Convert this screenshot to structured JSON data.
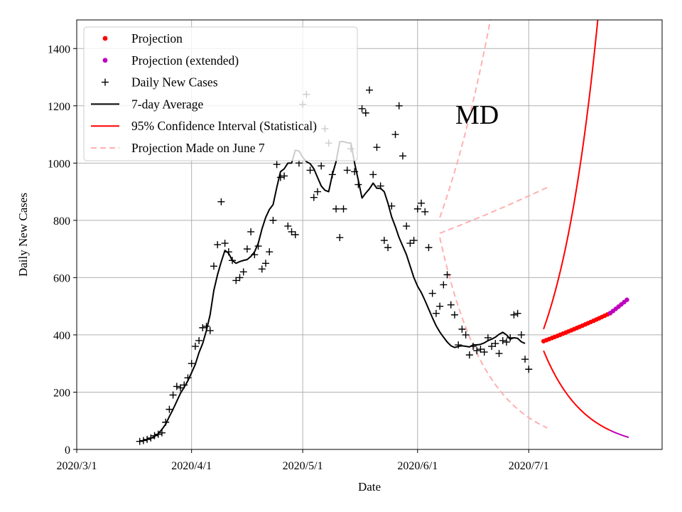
{
  "chart_data": {
    "type": "line",
    "state_label": "MD",
    "xlabel": "Date",
    "ylabel": "Daily New Cases",
    "x_ticks": [
      {
        "day": 0,
        "label": "2020/3/1"
      },
      {
        "day": 31,
        "label": "2020/4/1"
      },
      {
        "day": 61,
        "label": "2020/5/1"
      },
      {
        "day": 92,
        "label": "2020/6/1"
      },
      {
        "day": 122,
        "label": "2020/7/1"
      }
    ],
    "y_ticks": [
      0,
      200,
      400,
      600,
      800,
      1000,
      1200,
      1400
    ],
    "xlim": [
      0,
      158
    ],
    "ylim": [
      0,
      1500
    ],
    "grid": true,
    "legend_position": "top-left",
    "legend": [
      {
        "label": "Projection",
        "kind": "dot",
        "color": "#ff0000"
      },
      {
        "label": "Projection (extended)",
        "kind": "dot",
        "color": "#bf00bf"
      },
      {
        "label": "Daily New Cases",
        "kind": "plus",
        "color": "#000000"
      },
      {
        "label": "7-day Average",
        "kind": "line",
        "color": "#000000"
      },
      {
        "label": "95% Confidence Interval (Statistical)",
        "kind": "line",
        "color": "#ff0000"
      },
      {
        "label": "Projection Made on June 7",
        "kind": "dash",
        "color": "#ffb0b0"
      }
    ],
    "daily_new_cases": {
      "start_day": 17,
      "values": [
        28,
        31,
        35,
        40,
        48,
        53,
        58,
        95,
        140,
        190,
        220,
        215,
        225,
        250,
        300,
        360,
        380,
        425,
        430,
        415,
        640,
        715,
        865,
        720,
        690,
        660,
        590,
        600,
        620,
        700,
        760,
        680,
        710,
        630,
        650,
        690,
        800,
        995,
        950,
        955,
        780,
        760,
        750,
        1000,
        1205,
        1240,
        975,
        880,
        900,
        990,
        1120,
        1070,
        960,
        840,
        740,
        840,
        975,
        1050,
        970,
        925,
        1190,
        1175,
        1255,
        960,
        1055,
        920,
        730,
        705,
        850,
        1100,
        1200,
        1025,
        780,
        720,
        730,
        840,
        860,
        830,
        705,
        545,
        475,
        500,
        575,
        610,
        505,
        470,
        365,
        420,
        400,
        330,
        360,
        345,
        350,
        340,
        390,
        360,
        370,
        335,
        380,
        375,
        390,
        470,
        475,
        400,
        315,
        280
      ]
    },
    "seven_day_average": {
      "start_day": 17,
      "values": [
        28,
        31,
        35,
        39,
        45,
        55,
        70,
        88,
        115,
        140,
        168,
        196,
        217,
        240,
        268,
        297,
        338,
        370,
        415,
        470,
        555,
        610,
        655,
        695,
        685,
        660,
        650,
        656,
        660,
        663,
        674,
        690,
        720,
        770,
        810,
        838,
        855,
        915,
        970,
        980,
        1000,
        1000,
        1045,
        1042,
        1020,
        1005,
        998,
        980,
        950,
        920,
        905,
        900,
        960,
        1005,
        1075,
        1075,
        1071,
        1070,
        1000,
        940,
        878,
        895,
        910,
        930,
        912,
        912,
        900,
        860,
        812,
        778,
        740,
        710,
        680,
        640,
        600,
        570,
        548,
        520,
        490,
        460,
        432,
        410,
        392,
        375,
        362,
        356,
        360,
        362,
        360,
        358,
        365,
        365,
        367,
        372,
        380,
        385,
        392,
        402,
        409,
        400,
        385,
        390,
        388,
        376,
        370
      ]
    },
    "projection": {
      "start_day": 126,
      "end_day": 144,
      "start_value": 378,
      "end_value": 476,
      "color": "#ff0000"
    },
    "projection_extended": {
      "start_day": 144,
      "end_day": 149,
      "start_value": 476,
      "end_value": 528,
      "color": "#bf00bf"
    },
    "confidence_interval": {
      "color": "#ff0000",
      "extended_color": "#bf00bf",
      "start_day": 126,
      "end_day": 149,
      "upper_start": 420,
      "upper_growth_per_day": 0.087,
      "lower_start": 345,
      "lower_end": 42
    },
    "projection_june7": {
      "color": "#ffb0b0",
      "start_day": 98,
      "end_day": 127,
      "upper_outer": [
        810,
        3000
      ],
      "upper_inner": [
        755,
        915
      ],
      "lower_outer": [
        740,
        75
      ]
    }
  }
}
